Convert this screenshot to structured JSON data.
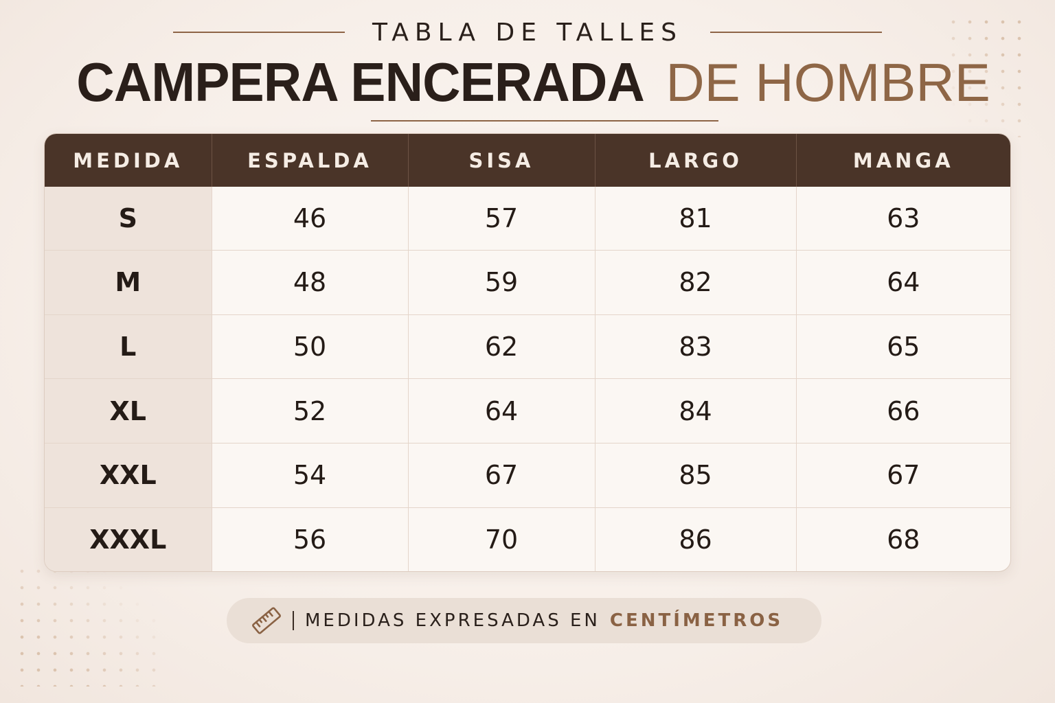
{
  "header": {
    "kicker": "TABLA DE TALLES",
    "title_main": "CAMPERA ENCERADA",
    "title_accent": "DE HOMBRE"
  },
  "table": {
    "columns": [
      "MEDIDA",
      "ESPALDA",
      "SISA",
      "LARGO",
      "MANGA"
    ],
    "rows": [
      [
        "S",
        "46",
        "57",
        "81",
        "63"
      ],
      [
        "M",
        "48",
        "59",
        "82",
        "64"
      ],
      [
        "L",
        "50",
        "62",
        "83",
        "65"
      ],
      [
        "XL",
        "52",
        "64",
        "84",
        "66"
      ],
      [
        "XXL",
        "54",
        "67",
        "85",
        "67"
      ],
      [
        "XXXL",
        "56",
        "70",
        "86",
        "68"
      ]
    ]
  },
  "footer": {
    "icon": "ruler-icon",
    "text": "MEDIDAS EXPRESADAS EN",
    "accent": "CENTÍMETROS"
  },
  "colors": {
    "background": "#f7efe9",
    "header_bg": "#4a3428",
    "accent": "#8e6646",
    "text": "#2a201b",
    "size_column_bg": "#eee3db",
    "pill_bg": "#eadfd6"
  }
}
